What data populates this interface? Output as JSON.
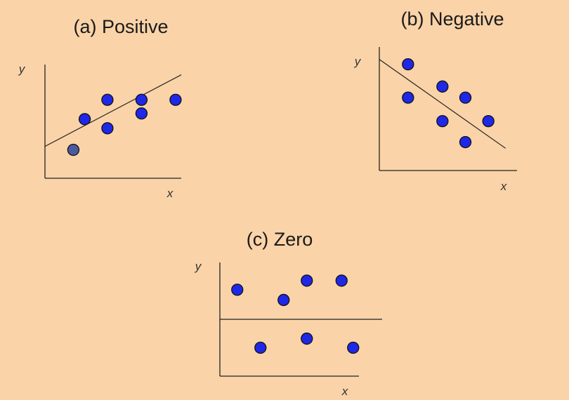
{
  "chart_data": [
    {
      "type": "scatter",
      "title": "(a) Positive",
      "xlabel": "x",
      "ylabel": "y",
      "points": [
        {
          "x": 2.5,
          "y": 2.5,
          "color": "#4b5a9e"
        },
        {
          "x": 3.5,
          "y": 5.2,
          "color": "#1f28e6"
        },
        {
          "x": 5.5,
          "y": 6.9,
          "color": "#1f28e6"
        },
        {
          "x": 5.5,
          "y": 4.4,
          "color": "#1f28e6"
        },
        {
          "x": 8.5,
          "y": 6.9,
          "color": "#1f28e6"
        },
        {
          "x": 8.5,
          "y": 5.7,
          "color": "#1f28e6"
        },
        {
          "x": 11.5,
          "y": 6.9,
          "color": "#1f28e6"
        }
      ],
      "trend_line": {
        "from": [
          0,
          2.8
        ],
        "to": [
          12,
          9.1
        ]
      },
      "xlim": [
        0,
        12
      ],
      "ylim": [
        0,
        10
      ],
      "grid": false
    },
    {
      "type": "scatter",
      "title": "(b) Negative",
      "xlabel": "x",
      "ylabel": "y",
      "points": [
        {
          "x": 2.5,
          "y": 8.6,
          "color": "#1f28e6"
        },
        {
          "x": 2.5,
          "y": 5.9,
          "color": "#1f28e6"
        },
        {
          "x": 5.5,
          "y": 6.8,
          "color": "#1f28e6"
        },
        {
          "x": 5.5,
          "y": 4.0,
          "color": "#1f28e6"
        },
        {
          "x": 7.5,
          "y": 5.9,
          "color": "#1f28e6"
        },
        {
          "x": 7.5,
          "y": 2.3,
          "color": "#1f28e6"
        },
        {
          "x": 9.5,
          "y": 4.0,
          "color": "#1f28e6"
        }
      ],
      "trend_line": {
        "from": [
          0,
          9.0
        ],
        "to": [
          11,
          1.8
        ]
      },
      "xlim": [
        0,
        12
      ],
      "ylim": [
        0,
        10
      ],
      "grid": false
    },
    {
      "type": "scatter",
      "title": "(c) Zero",
      "xlabel": "x",
      "ylabel": "y",
      "points": [
        {
          "x": 1.5,
          "y": 7.6,
          "color": "#1f28e6"
        },
        {
          "x": 5.5,
          "y": 6.7,
          "color": "#1f28e6"
        },
        {
          "x": 7.5,
          "y": 8.4,
          "color": "#1f28e6"
        },
        {
          "x": 10.5,
          "y": 8.4,
          "color": "#1f28e6"
        },
        {
          "x": 3.5,
          "y": 2.5,
          "color": "#1f28e6"
        },
        {
          "x": 7.5,
          "y": 3.3,
          "color": "#1f28e6"
        },
        {
          "x": 11.5,
          "y": 2.5,
          "color": "#1f28e6"
        }
      ],
      "trend_line": {
        "from": [
          0,
          5.0
        ],
        "to": [
          14,
          5.0
        ]
      },
      "xlim": [
        0,
        12
      ],
      "ylim": [
        0,
        10
      ],
      "grid": false
    }
  ]
}
